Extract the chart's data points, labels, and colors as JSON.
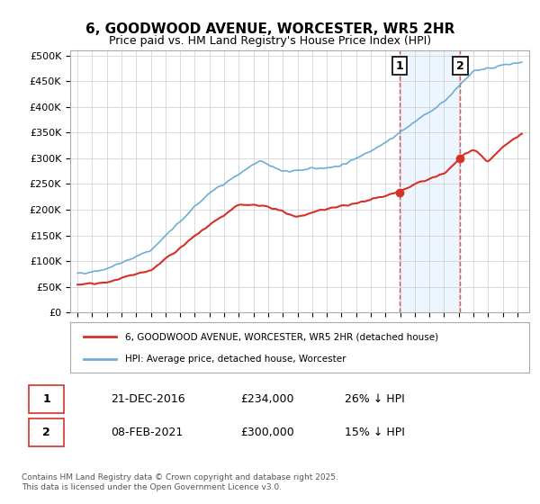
{
  "title": "6, GOODWOOD AVENUE, WORCESTER, WR5 2HR",
  "subtitle": "Price paid vs. HM Land Registry's House Price Index (HPI)",
  "ylabel_ticks": [
    "£0",
    "£50K",
    "£100K",
    "£150K",
    "£200K",
    "£250K",
    "£300K",
    "£350K",
    "£400K",
    "£450K",
    "£500K"
  ],
  "ytick_values": [
    0,
    50000,
    100000,
    150000,
    200000,
    250000,
    300000,
    350000,
    400000,
    450000,
    500000
  ],
  "ylim": [
    0,
    510000
  ],
  "xlim_start": 1995.0,
  "xlim_end": 2025.5,
  "hpi_color": "#6baed6",
  "price_color": "#d73027",
  "vline_color": "#d73027",
  "vline_alpha": 0.5,
  "vline1_x": 2016.97,
  "vline2_x": 2021.1,
  "marker1_x": 2016.97,
  "marker1_y": 234000,
  "marker2_x": 2021.1,
  "marker2_y": 300000,
  "annotation1_label": "1",
  "annotation2_label": "2",
  "legend_line1": "6, GOODWOOD AVENUE, WORCESTER, WR5 2HR (detached house)",
  "legend_line2": "HPI: Average price, detached house, Worcester",
  "table_row1": [
    "1",
    "21-DEC-2016",
    "£234,000",
    "26% ↓ HPI"
  ],
  "table_row2": [
    "2",
    "08-FEB-2021",
    "£300,000",
    "15% ↓ HPI"
  ],
  "footnote": "Contains HM Land Registry data © Crown copyright and database right 2025.\nThis data is licensed under the Open Government Licence v3.0.",
  "background_color": "#ffffff",
  "plot_bg_color": "#ffffff",
  "shade_color": "#ddeeff"
}
